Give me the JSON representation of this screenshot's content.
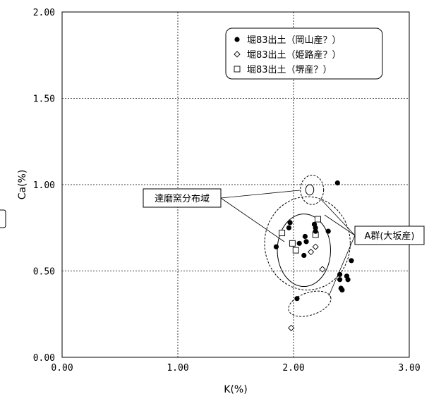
{
  "chart_data": {
    "type": "scatter",
    "xlabel": "K(%)",
    "ylabel": "Ca(%)",
    "xlim": [
      0,
      3
    ],
    "ylim": [
      0,
      2
    ],
    "x_ticks": [
      "0.00",
      "1.00",
      "2.00",
      "3.00"
    ],
    "y_ticks": [
      "0.00",
      "0.50",
      "1.00",
      "1.50",
      "2.00"
    ],
    "grid": true,
    "legend_position": "top-right",
    "series": [
      {
        "name": "堀83出土（岡山産？）",
        "marker": "filled-circle",
        "points": [
          [
            1.85,
            0.64
          ],
          [
            1.96,
            0.75
          ],
          [
            1.97,
            0.78
          ],
          [
            2.03,
            0.34
          ],
          [
            2.05,
            0.66
          ],
          [
            2.09,
            0.59
          ],
          [
            2.1,
            0.7
          ],
          [
            2.11,
            0.67
          ],
          [
            2.18,
            0.77
          ],
          [
            2.19,
            0.75
          ],
          [
            2.19,
            0.73
          ],
          [
            2.3,
            0.73
          ],
          [
            2.38,
            1.01
          ],
          [
            2.4,
            0.48
          ],
          [
            2.4,
            0.45
          ],
          [
            2.41,
            0.4
          ],
          [
            2.42,
            0.39
          ],
          [
            2.46,
            0.47
          ],
          [
            2.47,
            0.45
          ],
          [
            2.5,
            0.56
          ]
        ]
      },
      {
        "name": "堀83出土（姫路産？）",
        "marker": "open-diamond",
        "points": [
          [
            1.98,
            0.17
          ],
          [
            2.15,
            0.61
          ],
          [
            2.19,
            0.64
          ],
          [
            2.25,
            0.51
          ]
        ]
      },
      {
        "name": "堀83出土（堺産？）",
        "marker": "open-square",
        "points": [
          [
            1.9,
            0.72
          ],
          [
            1.99,
            0.66
          ],
          [
            2.02,
            0.62
          ],
          [
            2.19,
            0.71
          ],
          [
            2.21,
            0.8
          ]
        ]
      }
    ],
    "annotations": [
      {
        "text": "達磨窯分布域"
      },
      {
        "text": "A群(大坂産)"
      }
    ],
    "regions": [
      {
        "group": "達磨窯分布域",
        "style": "solid",
        "cx": 2.09,
        "cy": 0.62,
        "rx": 0.23,
        "ry": 0.21
      },
      {
        "group": "達磨窯分布域",
        "style": "solid",
        "cx": 2.14,
        "cy": 0.97,
        "rx": 0.035,
        "ry": 0.03
      },
      {
        "group": "A群(大坂産)",
        "style": "dashed",
        "cx": 2.12,
        "cy": 0.66,
        "rx": 0.37,
        "ry": 0.27
      },
      {
        "group": "A群(大坂産)",
        "style": "dashed",
        "cx": 2.16,
        "cy": 0.97,
        "rx": 0.1,
        "ry": 0.085
      },
      {
        "group": "A群(大坂産)",
        "style": "dashed",
        "cx": 2.14,
        "cy": 0.31,
        "rx": 0.19,
        "ry": 0.065,
        "rotate_deg": -18
      }
    ]
  }
}
